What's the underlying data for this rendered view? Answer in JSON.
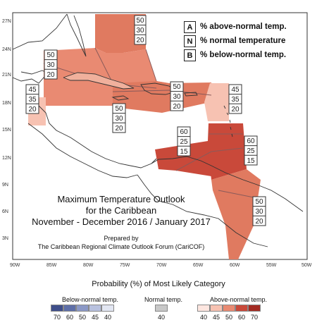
{
  "map": {
    "lat_labels": [
      "27N",
      "24N",
      "21N",
      "18N",
      "15N",
      "12N",
      "9N",
      "6N",
      "3N"
    ],
    "lon_labels": [
      "90W",
      "85W",
      "80W",
      "75W",
      "70W",
      "65W",
      "60W",
      "55W",
      "50W"
    ],
    "title_lines": [
      "Maximum Temperature Outlook",
      "for the Caribbean",
      "November - December 2016 / January 2017"
    ],
    "prepared_by": [
      "Prepared by",
      "The Caribbean Regional Climate Outlook Forum (CariCOF)"
    ]
  },
  "key": [
    {
      "letter": "A",
      "text": "% above-normal temp."
    },
    {
      "letter": "N",
      "text": "% normal temperature"
    },
    {
      "letter": "B",
      "text": "% below-normal temp."
    }
  ],
  "regions": [
    {
      "name": "bahamas",
      "values": [
        "50",
        "30",
        "20"
      ],
      "color": "#e07a60"
    },
    {
      "name": "cuba",
      "values": [
        "50",
        "30",
        "20"
      ],
      "color": "#e98a72"
    },
    {
      "name": "hispaniola-jamaica",
      "values": [
        "50",
        "30",
        "20"
      ],
      "color": "#e07a60"
    },
    {
      "name": "belize",
      "values": [
        "45",
        "35",
        "20"
      ],
      "color": "#f7c2b2"
    },
    {
      "name": "leeward-islands",
      "values": [
        "45",
        "35",
        "20"
      ],
      "color": "#f7c2b2"
    },
    {
      "name": "south-caribbean",
      "values": [
        "60",
        "25",
        "15"
      ],
      "color": "#c9493a"
    },
    {
      "name": "windward-islands",
      "values": [
        "60",
        "25",
        "15"
      ],
      "color": "#c9493a"
    },
    {
      "name": "guianas",
      "values": [
        "50",
        "30",
        "20"
      ],
      "color": "#e07a60"
    }
  ],
  "legend": {
    "title": "Probability (%) of Most Likely Category",
    "below": {
      "label": "Below-normal temp.",
      "ticks": [
        "70",
        "60",
        "50",
        "45",
        "40"
      ],
      "colors": [
        "#3f4e8a",
        "#5e6fa8",
        "#8b98c6",
        "#b8c1df",
        "#e2e6f2"
      ]
    },
    "normal": {
      "label": "Normal temp.",
      "ticks": [
        "40"
      ],
      "colors": [
        "#c8c8c8"
      ]
    },
    "above": {
      "label": "Above-normal temp.",
      "ticks": [
        "40",
        "45",
        "50",
        "60",
        "70"
      ],
      "colors": [
        "#fde6e0",
        "#f7c2b2",
        "#e98a72",
        "#c9493a",
        "#a32b23"
      ]
    }
  }
}
